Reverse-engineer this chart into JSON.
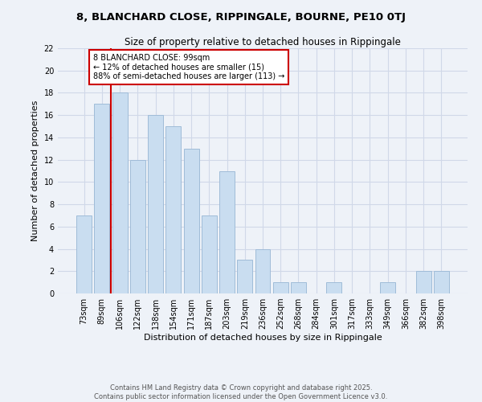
{
  "title1": "8, BLANCHARD CLOSE, RIPPINGALE, BOURNE, PE10 0TJ",
  "title2": "Size of property relative to detached houses in Rippingale",
  "xlabel": "Distribution of detached houses by size in Rippingale",
  "ylabel": "Number of detached properties",
  "categories": [
    "73sqm",
    "89sqm",
    "106sqm",
    "122sqm",
    "138sqm",
    "154sqm",
    "171sqm",
    "187sqm",
    "203sqm",
    "219sqm",
    "236sqm",
    "252sqm",
    "268sqm",
    "284sqm",
    "301sqm",
    "317sqm",
    "333sqm",
    "349sqm",
    "366sqm",
    "382sqm",
    "398sqm"
  ],
  "values": [
    7,
    17,
    18,
    12,
    16,
    15,
    13,
    7,
    11,
    3,
    4,
    1,
    1,
    0,
    1,
    0,
    0,
    1,
    0,
    2,
    2
  ],
  "bar_color": "#c9ddf0",
  "bar_edge_color": "#a0bcd8",
  "grid_color": "#d0d8e8",
  "background_color": "#eef2f8",
  "vline_x_index": 1.5,
  "annotation_text": "8 BLANCHARD CLOSE: 99sqm\n← 12% of detached houses are smaller (15)\n88% of semi-detached houses are larger (113) →",
  "annotation_box_color": "#ffffff",
  "annotation_box_edge_color": "#cc0000",
  "vline_color": "#cc0000",
  "footer_line1": "Contains HM Land Registry data © Crown copyright and database right 2025.",
  "footer_line2": "Contains public sector information licensed under the Open Government Licence v3.0.",
  "ylim": [
    0,
    22
  ],
  "yticks": [
    0,
    2,
    4,
    6,
    8,
    10,
    12,
    14,
    16,
    18,
    20,
    22
  ]
}
